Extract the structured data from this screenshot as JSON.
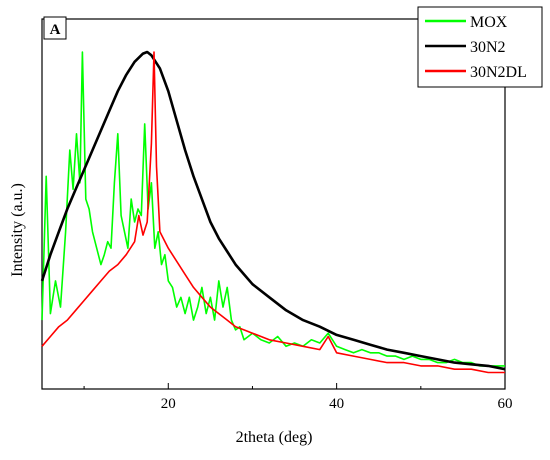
{
  "chart_data": {
    "type": "line",
    "title": "",
    "panel_label": "A",
    "xlabel": "2theta (deg)",
    "ylabel": "Intensity (a.u.)",
    "xlim": [
      5,
      60
    ],
    "ylim": [
      0,
      100
    ],
    "x_ticks": [
      20,
      40,
      60
    ],
    "x_tick_labels": [
      "20",
      "40",
      "60"
    ],
    "y_ticks_shown": false,
    "grid": false,
    "legend_position": "top-right",
    "series": [
      {
        "name": "MOX",
        "color": "#00ff00",
        "x": [
          5.0,
          5.5,
          6.0,
          6.6,
          7.2,
          7.8,
          8.3,
          8.7,
          9.1,
          9.5,
          9.8,
          10.2,
          10.6,
          11.0,
          11.5,
          12.0,
          12.4,
          12.8,
          13.2,
          13.6,
          14.0,
          14.4,
          14.8,
          15.2,
          15.6,
          16.0,
          16.4,
          16.8,
          17.2,
          17.6,
          18.0,
          18.4,
          18.8,
          19.2,
          19.6,
          20.0,
          20.5,
          21.0,
          21.5,
          22.0,
          22.5,
          23.0,
          23.5,
          24.0,
          24.5,
          25.0,
          25.5,
          26.0,
          26.5,
          27.0,
          27.5,
          28.0,
          28.5,
          29.0,
          30.0,
          31.0,
          32.0,
          33.0,
          34.0,
          35.0,
          36.0,
          37.0,
          38.0,
          39.0,
          40.0,
          41.0,
          42.0,
          43.0,
          44.0,
          45.0,
          46.0,
          47.0,
          48.0,
          49.0,
          50.0,
          51.0,
          52.0,
          53.0,
          54.0,
          55.0,
          56.0,
          57.0,
          58.0,
          59.0,
          60.0
        ],
        "values": [
          18,
          62,
          20,
          30,
          22,
          45,
          70,
          58,
          75,
          60,
          100,
          55,
          52,
          45,
          40,
          35,
          38,
          42,
          40,
          60,
          75,
          50,
          45,
          40,
          55,
          48,
          52,
          50,
          78,
          52,
          60,
          40,
          45,
          35,
          38,
          30,
          28,
          22,
          25,
          20,
          25,
          18,
          22,
          28,
          20,
          25,
          18,
          30,
          22,
          28,
          18,
          15,
          16,
          12,
          14,
          12,
          11,
          13,
          10,
          11,
          10,
          12,
          11,
          14,
          10,
          9,
          8,
          9,
          8,
          8,
          7,
          7,
          6,
          7,
          6,
          6,
          5,
          5,
          6,
          5,
          5,
          4,
          4,
          4,
          4
        ]
      },
      {
        "name": "30N2",
        "color": "#000000",
        "x": [
          5,
          6,
          7,
          8,
          9,
          10,
          11,
          12,
          13,
          14,
          15,
          16,
          17,
          17.5,
          18,
          19,
          20,
          21,
          22,
          23,
          24,
          25,
          26,
          27,
          28,
          29,
          30,
          32,
          34,
          36,
          38,
          40,
          42,
          44,
          46,
          48,
          50,
          52,
          54,
          56,
          58,
          60
        ],
        "values": [
          30,
          38,
          45,
          52,
          58,
          64,
          70,
          76,
          82,
          88,
          93,
          97,
          99.5,
          100,
          99,
          95,
          88,
          79,
          70,
          62,
          55,
          48,
          43,
          39,
          35,
          32,
          29,
          25,
          21,
          18,
          16,
          13.5,
          12,
          10.5,
          9,
          8,
          7,
          6,
          5,
          4.5,
          4,
          3
        ]
      },
      {
        "name": "30N2DL",
        "color": "#ff0000",
        "x": [
          5,
          6,
          7,
          8,
          9,
          10,
          11,
          12,
          13,
          14,
          15,
          16,
          16.5,
          17,
          17.5,
          18,
          18.3,
          18.6,
          19,
          20,
          21,
          22,
          23,
          24,
          25,
          26,
          27,
          28,
          29,
          30,
          32,
          34,
          36,
          38,
          39,
          40,
          42,
          44,
          46,
          48,
          50,
          52,
          54,
          56,
          58,
          60
        ],
        "values": [
          10,
          13,
          16,
          18,
          21,
          24,
          27,
          30,
          33,
          35,
          38,
          42,
          50,
          44,
          48,
          72,
          100,
          65,
          45,
          40,
          36,
          32,
          28,
          25,
          22,
          20,
          18,
          16,
          15,
          14,
          12,
          11,
          10,
          9,
          13,
          8,
          7,
          6,
          5,
          5,
          4,
          4,
          3,
          3,
          2,
          2
        ]
      }
    ]
  }
}
